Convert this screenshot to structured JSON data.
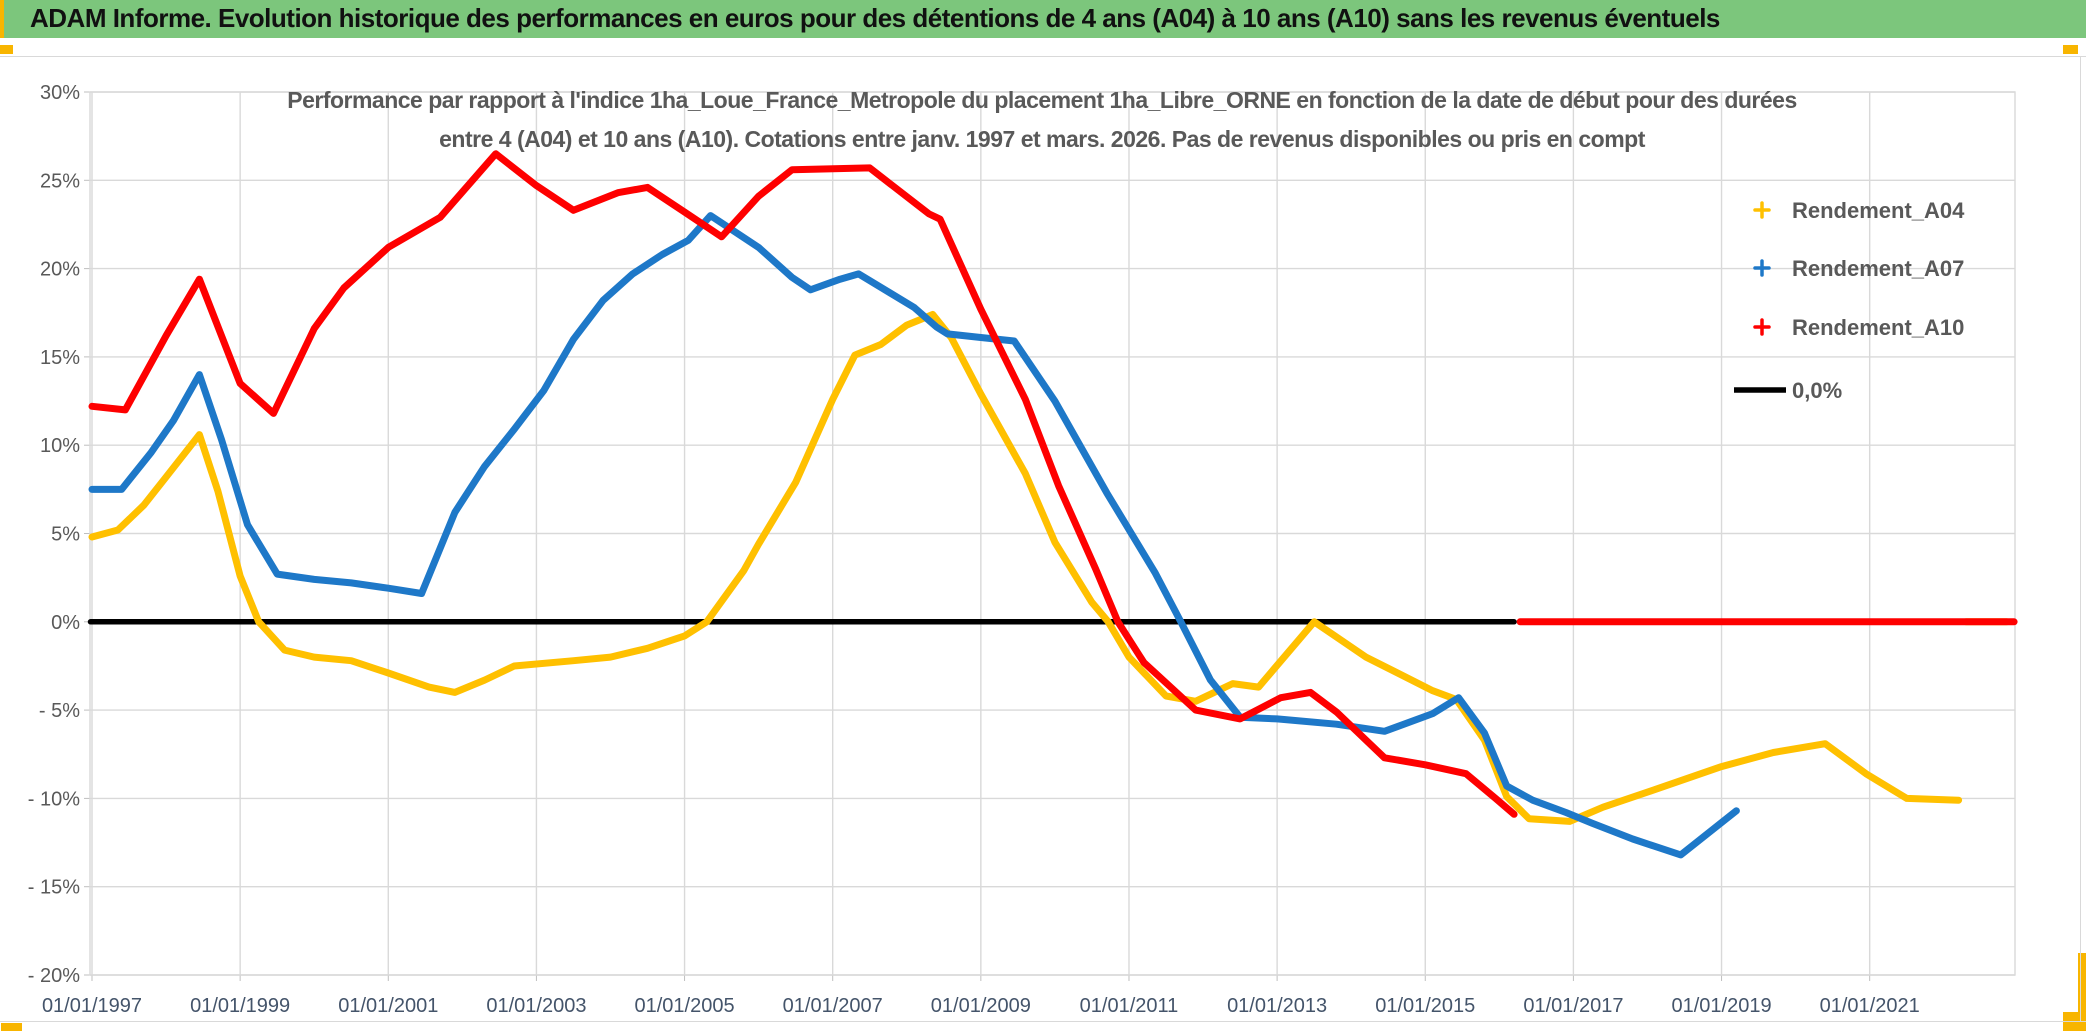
{
  "window": {
    "header_title": "ADAM Informe. Evolution historique des performances en euros pour des détentions de 4 ans (A04) à 10 ans (A10) sans les revenus éventuels",
    "header_bg": "#7CC67C",
    "accent_color": "#F8B500",
    "frame_line_color": "#D9D9D9"
  },
  "chart_data": {
    "type": "line",
    "title": "Performance par rapport à l'indice 1ha_Loue_France_Metropole  du placement 1ha_Libre_ORNE en fonction de la date de début pour des durées entre 4 (A04) et 10 ans (A10). Cotations entre janv. 1997 et mars. 2026. Pas de revenus disponibles ou pris en compt",
    "title_lines": [
      "Performance par rapport à l'indice 1ha_Loue_France_Metropole  du placement 1ha_Libre_ORNE en fonction de la date de début pour des durées",
      "entre 4 (A04) et 10 ans (A10). Cotations entre janv. 1997 et mars. 2026. Pas de revenus disponibles ou pris en compt"
    ],
    "title_color": "#595959",
    "grid": true,
    "grid_color": "#D9D9D9",
    "legend_position": "right",
    "x_axis": {
      "label_color": "#44546A",
      "range_years": [
        1997,
        2023
      ],
      "ticks": [
        {
          "year": 1997,
          "label": "01/01/1997"
        },
        {
          "year": 1999,
          "label": "01/01/1999"
        },
        {
          "year": 2001,
          "label": "01/01/2001"
        },
        {
          "year": 2003,
          "label": "01/01/2003"
        },
        {
          "year": 2005,
          "label": "01/01/2005"
        },
        {
          "year": 2007,
          "label": "01/01/2007"
        },
        {
          "year": 2009,
          "label": "01/01/2009"
        },
        {
          "year": 2011,
          "label": "01/01/2011"
        },
        {
          "year": 2013,
          "label": "01/01/2013"
        },
        {
          "year": 2015,
          "label": "01/01/2015"
        },
        {
          "year": 2017,
          "label": "01/01/2017"
        },
        {
          "year": 2019,
          "label": "01/01/2019"
        },
        {
          "year": 2021,
          "label": "01/01/2021"
        }
      ]
    },
    "y_axis": {
      "label_color": "#595959",
      "unit": "%",
      "range": [
        -20,
        30
      ],
      "ticks": [
        {
          "v": 30,
          "label": "30%"
        },
        {
          "v": 25,
          "label": "25%"
        },
        {
          "v": 20,
          "label": "20%"
        },
        {
          "v": 15,
          "label": "15%"
        },
        {
          "v": 10,
          "label": "10%"
        },
        {
          "v": 5,
          "label": "5%"
        },
        {
          "v": 0,
          "label": "0%"
        },
        {
          "v": -5,
          "label": "- 5%"
        },
        {
          "v": -10,
          "label": "- 10%"
        },
        {
          "v": -15,
          "label": "- 15%"
        },
        {
          "v": -20,
          "label": "- 20%"
        }
      ]
    },
    "legend": [
      {
        "label": "Rendement_A04",
        "color": "#FFC000",
        "marker": "plus"
      },
      {
        "label": "Rendement_A07",
        "color": "#1E78C8",
        "marker": "plus"
      },
      {
        "label": "Rendement_A10",
        "color": "#FE0000",
        "marker": "plus"
      },
      {
        "label": "0,0%",
        "color": "#000000",
        "marker": "line"
      }
    ],
    "series": [
      {
        "name": "0,0%",
        "color": "#000000",
        "role": "baseline",
        "segments": [
          [
            [
              1996.98,
              0
            ],
            [
              2016.2,
              0
            ]
          ]
        ]
      },
      {
        "name": "Rendement_A04",
        "color": "#FFC000",
        "role": "data",
        "segments": [
          [
            [
              1997.0,
              4.8
            ],
            [
              1997.35,
              5.2
            ],
            [
              1997.7,
              6.6
            ],
            [
              1998.0,
              8.2
            ],
            [
              1998.45,
              10.6
            ],
            [
              1998.7,
              7.4
            ],
            [
              1999.0,
              2.6
            ],
            [
              1999.25,
              0.0
            ],
            [
              1999.6,
              -1.6
            ],
            [
              2000.0,
              -2.0
            ],
            [
              2000.5,
              -2.2
            ],
            [
              2001.0,
              -2.9
            ],
            [
              2001.55,
              -3.7
            ],
            [
              2001.9,
              -4.0
            ],
            [
              2002.3,
              -3.3
            ],
            [
              2002.7,
              -2.5
            ],
            [
              2003.5,
              -2.2
            ],
            [
              2004.0,
              -2.0
            ],
            [
              2004.5,
              -1.5
            ],
            [
              2005.0,
              -0.8
            ],
            [
              2005.3,
              0.0
            ],
            [
              2005.8,
              2.9
            ],
            [
              2006.0,
              4.4
            ],
            [
              2006.5,
              7.9
            ],
            [
              2007.0,
              12.6
            ],
            [
              2007.3,
              15.1
            ],
            [
              2007.65,
              15.7
            ],
            [
              2008.0,
              16.8
            ],
            [
              2008.35,
              17.4
            ],
            [
              2008.6,
              16.1
            ],
            [
              2009.0,
              12.9
            ],
            [
              2009.6,
              8.4
            ],
            [
              2010.0,
              4.5
            ],
            [
              2010.5,
              1.1
            ],
            [
              2010.72,
              0.0
            ],
            [
              2011.0,
              -2.0
            ],
            [
              2011.5,
              -4.2
            ],
            [
              2011.9,
              -4.5
            ],
            [
              2012.4,
              -3.5
            ],
            [
              2012.75,
              -3.7
            ],
            [
              2013.5,
              0.0
            ],
            [
              2014.2,
              -2.0
            ],
            [
              2015.1,
              -3.9
            ],
            [
              2015.42,
              -4.4
            ],
            [
              2015.8,
              -6.7
            ],
            [
              2016.1,
              -9.9
            ],
            [
              2016.4,
              -11.15
            ],
            [
              2016.95,
              -11.3
            ],
            [
              2017.4,
              -10.5
            ],
            [
              2018.1,
              -9.5
            ],
            [
              2019.0,
              -8.2
            ],
            [
              2019.7,
              -7.4
            ],
            [
              2020.4,
              -6.9
            ],
            [
              2020.95,
              -8.6
            ],
            [
              2021.5,
              -10.0
            ],
            [
              2022.2,
              -10.1
            ]
          ],
          [
            [
              2022.3,
              0.0
            ],
            [
              2022.85,
              0.0
            ]
          ]
        ]
      },
      {
        "name": "Rendement_A07",
        "color": "#1E78C8",
        "role": "data",
        "segments": [
          [
            [
              1997.0,
              7.5
            ],
            [
              1997.4,
              7.5
            ],
            [
              1997.8,
              9.6
            ],
            [
              1998.1,
              11.4
            ],
            [
              1998.45,
              14.0
            ],
            [
              1998.75,
              10.3
            ],
            [
              1999.1,
              5.5
            ],
            [
              1999.5,
              2.7
            ],
            [
              2000.0,
              2.4
            ],
            [
              2000.5,
              2.2
            ],
            [
              2001.0,
              1.9
            ],
            [
              2001.45,
              1.6
            ],
            [
              2001.9,
              6.2
            ],
            [
              2002.3,
              8.8
            ],
            [
              2002.7,
              10.9
            ],
            [
              2003.1,
              13.1
            ],
            [
              2003.5,
              16.0
            ],
            [
              2003.9,
              18.2
            ],
            [
              2004.3,
              19.7
            ],
            [
              2004.7,
              20.8
            ],
            [
              2005.05,
              21.6
            ],
            [
              2005.35,
              23.0
            ],
            [
              2006.0,
              21.2
            ],
            [
              2006.45,
              19.5
            ],
            [
              2006.7,
              18.8
            ],
            [
              2007.1,
              19.4
            ],
            [
              2007.35,
              19.7
            ],
            [
              2008.1,
              17.8
            ],
            [
              2008.4,
              16.7
            ],
            [
              2008.55,
              16.3
            ],
            [
              2009.0,
              16.1
            ],
            [
              2009.45,
              15.9
            ],
            [
              2010.0,
              12.5
            ],
            [
              2010.7,
              7.3
            ],
            [
              2011.35,
              2.8
            ],
            [
              2011.7,
              0.0
            ],
            [
              2012.1,
              -3.3
            ],
            [
              2012.5,
              -5.4
            ],
            [
              2013.0,
              -5.5
            ],
            [
              2013.8,
              -5.8
            ],
            [
              2014.45,
              -6.2
            ],
            [
              2015.1,
              -5.2
            ],
            [
              2015.45,
              -4.3
            ],
            [
              2015.8,
              -6.3
            ],
            [
              2016.1,
              -9.3
            ],
            [
              2016.45,
              -10.1
            ],
            [
              2016.9,
              -10.8
            ],
            [
              2017.25,
              -11.4
            ],
            [
              2017.8,
              -12.3
            ],
            [
              2018.45,
              -13.2
            ],
            [
              2019.2,
              -10.7
            ]
          ]
        ]
      },
      {
        "name": "Rendement_A10",
        "color": "#FE0000",
        "role": "data",
        "segments": [
          [
            [
              1997.0,
              12.2
            ],
            [
              1997.45,
              12.0
            ],
            [
              1998.0,
              16.2
            ],
            [
              1998.45,
              19.4
            ],
            [
              1999.0,
              13.5
            ],
            [
              1999.45,
              11.8
            ],
            [
              2000.0,
              16.6
            ],
            [
              2000.4,
              18.9
            ],
            [
              2001.0,
              21.2
            ],
            [
              2001.7,
              22.9
            ],
            [
              2002.45,
              26.5
            ],
            [
              2003.0,
              24.7
            ],
            [
              2003.5,
              23.3
            ],
            [
              2004.1,
              24.3
            ],
            [
              2004.5,
              24.6
            ],
            [
              2005.0,
              23.2
            ],
            [
              2005.5,
              21.8
            ],
            [
              2006.0,
              24.1
            ],
            [
              2006.45,
              25.6
            ],
            [
              2007.5,
              25.7
            ],
            [
              2008.3,
              23.1
            ],
            [
              2008.45,
              22.8
            ],
            [
              2009.0,
              17.7
            ],
            [
              2009.6,
              12.6
            ],
            [
              2010.05,
              7.7
            ],
            [
              2010.55,
              3.0
            ],
            [
              2010.85,
              0.0
            ],
            [
              2011.2,
              -2.3
            ],
            [
              2011.9,
              -5.0
            ],
            [
              2012.5,
              -5.5
            ],
            [
              2013.05,
              -4.3
            ],
            [
              2013.45,
              -4.0
            ],
            [
              2013.8,
              -5.1
            ],
            [
              2014.45,
              -7.7
            ],
            [
              2015.0,
              -8.1
            ],
            [
              2015.55,
              -8.6
            ],
            [
              2015.95,
              -10.0
            ],
            [
              2016.2,
              -10.9
            ]
          ],
          [
            [
              2016.28,
              0.0
            ],
            [
              2022.95,
              0.0
            ]
          ]
        ]
      }
    ]
  }
}
